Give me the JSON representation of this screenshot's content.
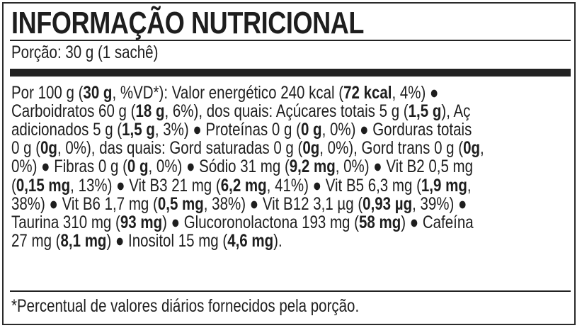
{
  "title": "INFORMAÇÃO NUTRICIONAL",
  "portion": "Porção: 30 g (1 sachê)",
  "body_lines": [
    [
      {
        "t": "Por 100 g ("
      },
      {
        "t": "30 g",
        "b": true
      },
      {
        "t": ", %VD*): Valor energético 240 kcal ("
      },
      {
        "t": "72 kcal",
        "b": true
      },
      {
        "t": ", 4%) ●"
      }
    ],
    [
      {
        "t": "Carboidratos 60 g ("
      },
      {
        "t": "18 g",
        "b": true
      },
      {
        "t": ", 6%), dos quais: Açúcares totais 5 g ("
      },
      {
        "t": "1,5 g",
        "b": true
      },
      {
        "t": "), Aç"
      }
    ],
    [
      {
        "t": "adicionados 5 g ("
      },
      {
        "t": "1,5 g",
        "b": true
      },
      {
        "t": ", 3%) ● Proteínas 0 g ("
      },
      {
        "t": "0 g",
        "b": true
      },
      {
        "t": ", 0%) ● Gorduras totais"
      }
    ],
    [
      {
        "t": "0 g ("
      },
      {
        "t": "0g",
        "b": true
      },
      {
        "t": ", 0%), das quais: Gord saturadas 0 g ("
      },
      {
        "t": "0g",
        "b": true
      },
      {
        "t": ", 0%), Gord trans 0 g ("
      },
      {
        "t": "0g",
        "b": true
      },
      {
        "t": ","
      }
    ],
    [
      {
        "t": "0%) ● Fibras 0 g ("
      },
      {
        "t": "0 g",
        "b": true
      },
      {
        "t": ", 0%) ● Sódio 31 mg ("
      },
      {
        "t": "9,2 mg",
        "b": true
      },
      {
        "t": ", 0%) ● Vit B2 0,5 mg"
      }
    ],
    [
      {
        "t": "("
      },
      {
        "t": "0,15 mg",
        "b": true
      },
      {
        "t": ", 13%) ● Vit B3 21 mg ("
      },
      {
        "t": "6,2 mg",
        "b": true
      },
      {
        "t": ", 41%) ● Vit B5 6,3 mg ("
      },
      {
        "t": "1,9 mg",
        "b": true
      },
      {
        "t": ","
      }
    ],
    [
      {
        "t": "38%) ● Vit B6 1,7 mg ("
      },
      {
        "t": "0,5 mg",
        "b": true
      },
      {
        "t": ", 38%) ● Vit B12 3,1 µg ("
      },
      {
        "t": "0,93 µg",
        "b": true
      },
      {
        "t": ", 39%) ●"
      }
    ],
    [
      {
        "t": "Taurina 310 mg ("
      },
      {
        "t": "93 mg",
        "b": true
      },
      {
        "t": ") ● Glucoronolactona 193 mg ("
      },
      {
        "t": "58 mg",
        "b": true
      },
      {
        "t": ") ● Cafeína"
      }
    ],
    [
      {
        "t": "27 mg ("
      },
      {
        "t": "8,1 mg",
        "b": true
      },
      {
        "t": ") ● Inositol 15 mg ("
      },
      {
        "t": "4,6 mg",
        "b": true
      },
      {
        "t": ")."
      }
    ]
  ],
  "footnote": "*Percentual de valores diários fornecidos pela porção."
}
